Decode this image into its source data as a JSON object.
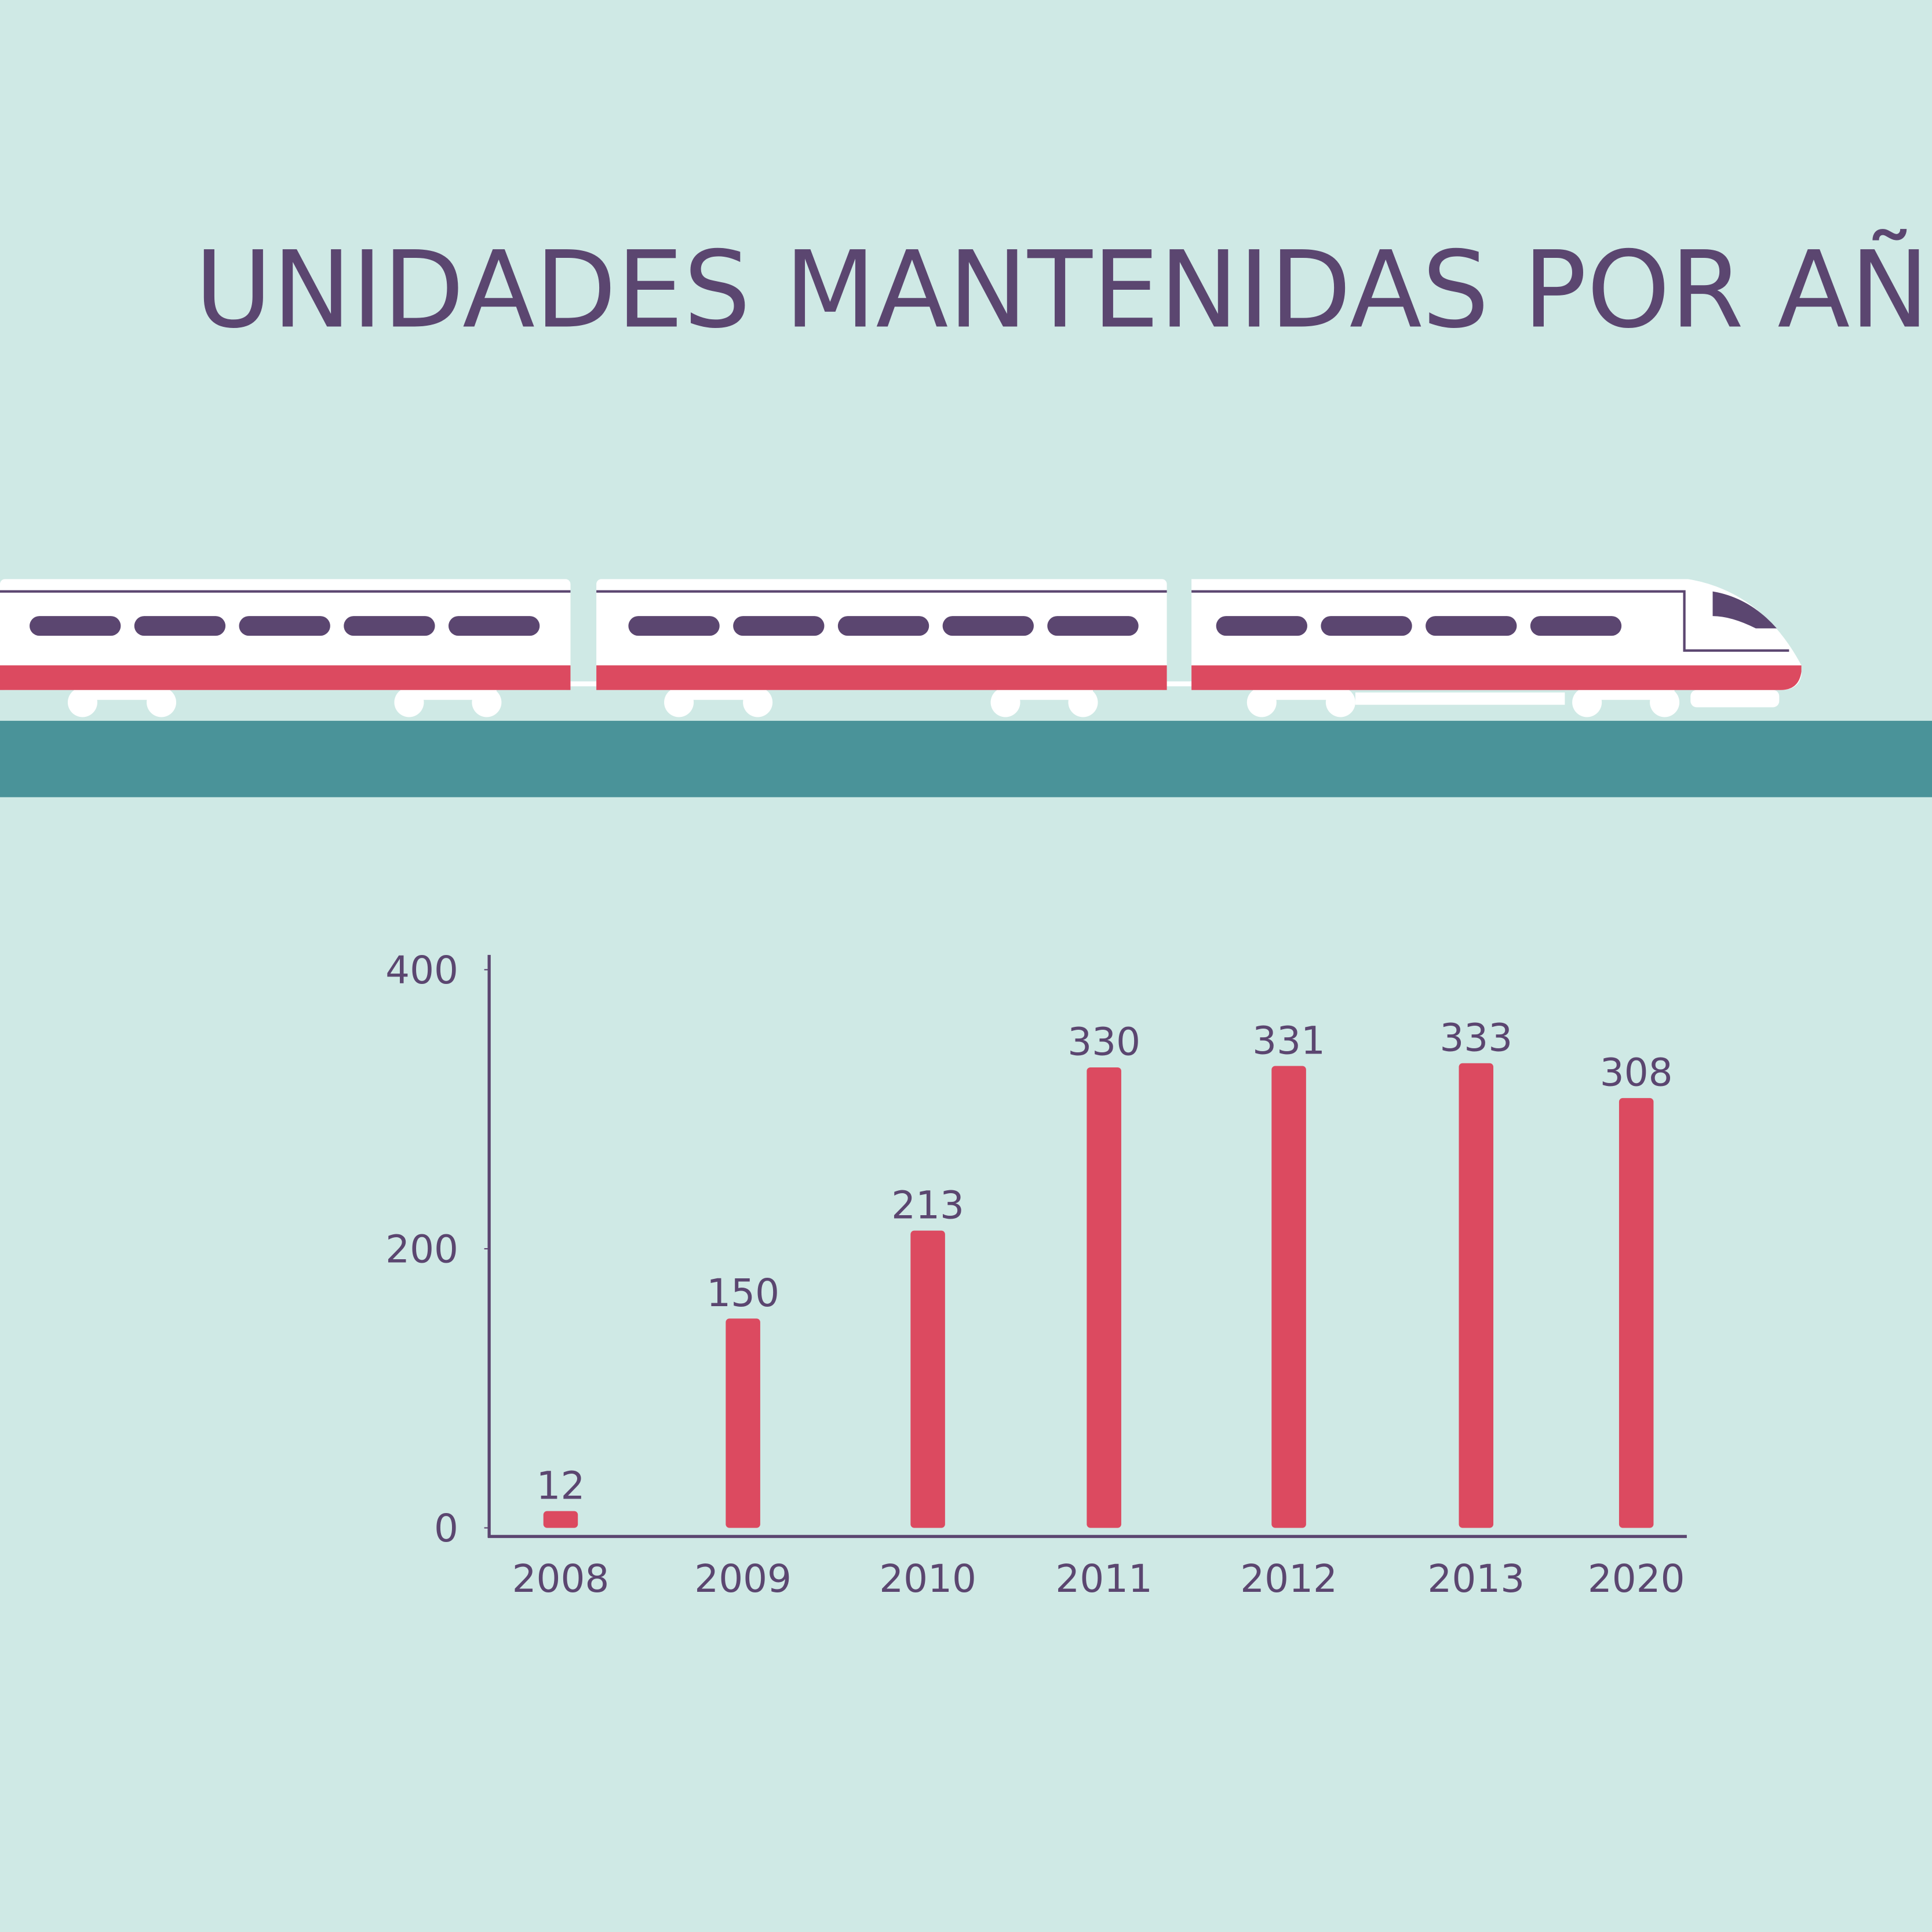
{
  "chart_data": {
    "type": "bar",
    "title": "UNIDADES MANTENIDAS POR AÑO",
    "categories": [
      "2008",
      "2009",
      "2010",
      "2011",
      "2012",
      "2013",
      "2020"
    ],
    "values": [
      12,
      150,
      213,
      330,
      331,
      333,
      308
    ],
    "color": "#dc4a60",
    "ylim": [
      0,
      400
    ],
    "yticks": [
      0,
      200,
      400
    ],
    "grid": false
  }
}
